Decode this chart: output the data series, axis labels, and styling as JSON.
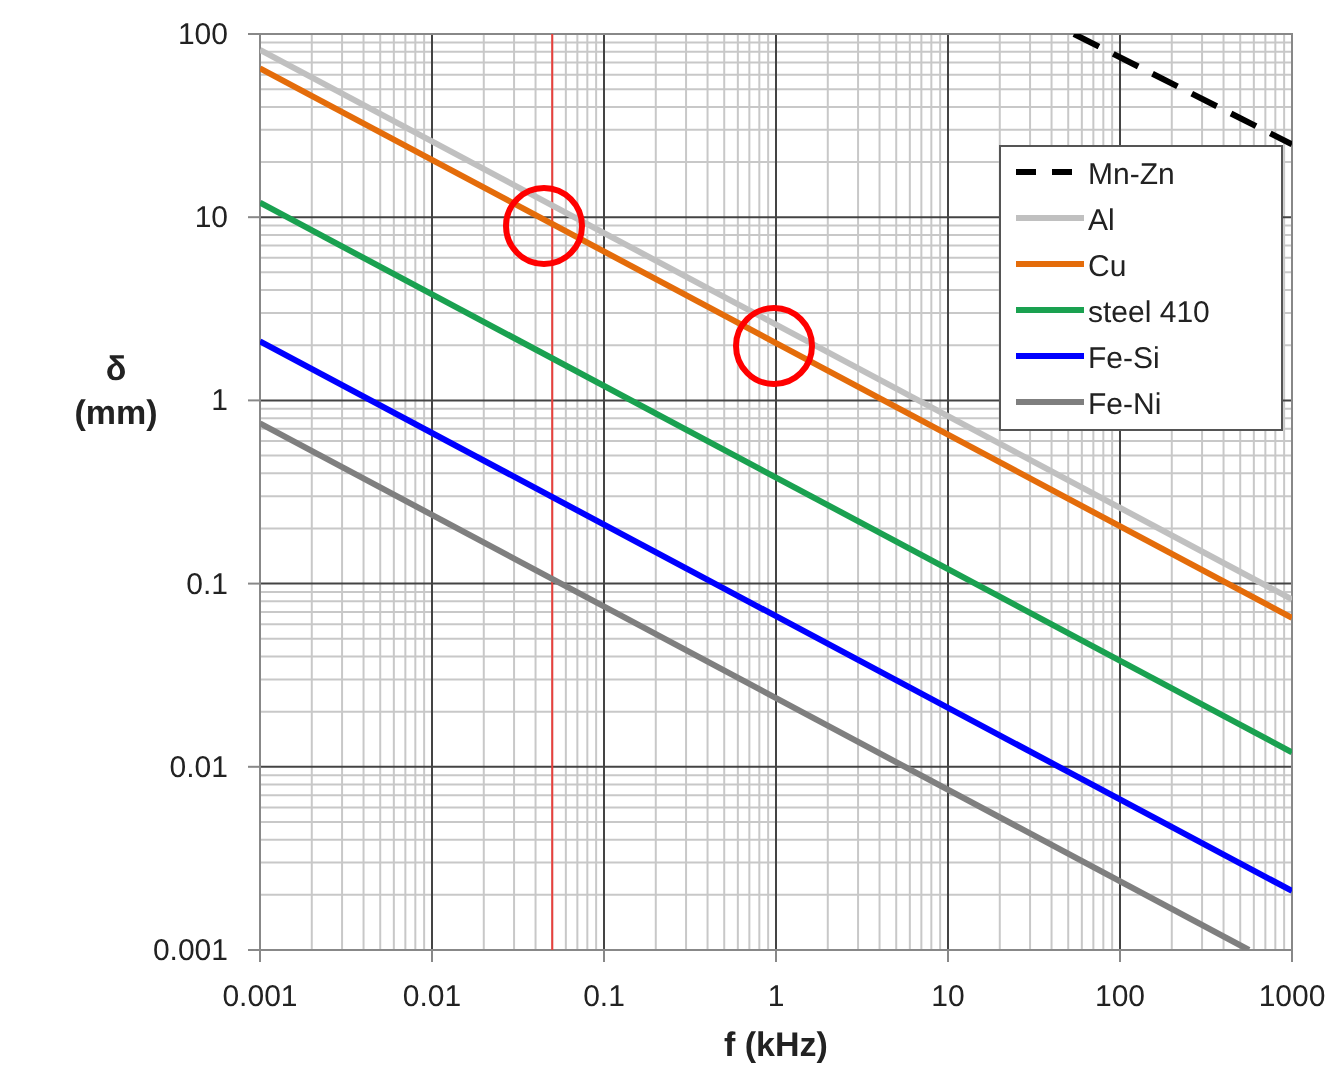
{
  "chart_data": {
    "type": "line",
    "xlabel": "f (kHz)",
    "ylabel": "δ (mm)",
    "log": "xy",
    "grid": true,
    "legend": "top right",
    "marker": "none",
    "xlim": [
      0.001,
      1000
    ],
    "xticks": [
      0.001,
      0.01,
      0.1,
      1,
      10,
      100,
      1000
    ],
    "ylim": [
      0.001,
      100
    ],
    "yticks": [
      0.001,
      0.01,
      0.1,
      1,
      10,
      100
    ],
    "ref_lines": [
      {
        "axis": "x",
        "value": 0.05,
        "color": "#e8403c"
      }
    ],
    "series": [
      {
        "name": "Mn-Zn",
        "color": "#000000",
        "line_style": "dashed",
        "x": [
          54,
          1000
        ],
        "values": [
          100,
          25
        ]
      },
      {
        "name": "Al",
        "color": "#c0c0c0",
        "x": [
          0.001,
          1000
        ],
        "values": [
          82,
          0.082
        ]
      },
      {
        "name": "Cu",
        "color": "#e46c0a",
        "x": [
          0.001,
          1000
        ],
        "values": [
          65,
          0.065
        ]
      },
      {
        "name": "steel 410",
        "color": "#1aa150",
        "x": [
          0.001,
          1000
        ],
        "values": [
          12,
          0.012
        ]
      },
      {
        "name": "Fe-Si",
        "color": "#0000ff",
        "x": [
          0.001,
          1000
        ],
        "values": [
          2.1,
          0.0021
        ]
      },
      {
        "name": "Fe-Ni",
        "color": "#7f7f7f",
        "x": [
          0.001,
          562
        ],
        "values": [
          0.75,
          0.001
        ]
      }
    ]
  }
}
